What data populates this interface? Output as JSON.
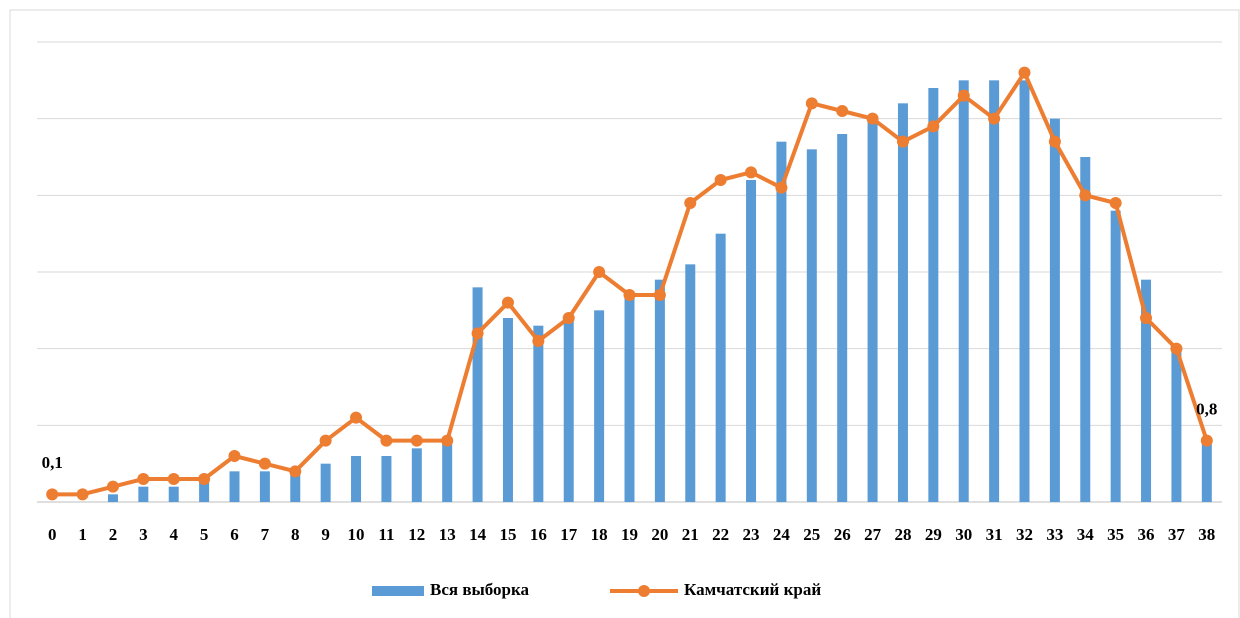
{
  "chart_data": {
    "type": "combo",
    "categories": [
      "0",
      "1",
      "2",
      "3",
      "4",
      "5",
      "6",
      "7",
      "8",
      "9",
      "10",
      "11",
      "12",
      "13",
      "14",
      "15",
      "16",
      "17",
      "18",
      "19",
      "20",
      "21",
      "22",
      "23",
      "24",
      "25",
      "26",
      "27",
      "28",
      "29",
      "30",
      "31",
      "32",
      "33",
      "34",
      "35",
      "36",
      "37",
      "38"
    ],
    "series": [
      {
        "name": "Вся выборка",
        "type": "bar",
        "color": "#5b9bd5",
        "values": [
          0,
          0,
          0.1,
          0.2,
          0.2,
          0.3,
          0.4,
          0.4,
          0.4,
          0.5,
          0.6,
          0.6,
          0.7,
          0.8,
          2.8,
          2.4,
          2.3,
          2.4,
          2.5,
          2.7,
          2.9,
          3.1,
          3.5,
          4.2,
          4.7,
          4.6,
          4.8,
          5.0,
          5.2,
          5.4,
          5.5,
          5.5,
          5.5,
          5.0,
          4.5,
          3.8,
          2.9,
          2.0,
          0.8
        ]
      },
      {
        "name": "Камчатский край",
        "type": "line",
        "color": "#ed7d31",
        "values": [
          0.1,
          0.1,
          0.2,
          0.3,
          0.3,
          0.3,
          0.6,
          0.5,
          0.4,
          0.8,
          1.1,
          0.8,
          0.8,
          0.8,
          2.2,
          2.6,
          2.1,
          2.4,
          3.0,
          2.7,
          2.7,
          3.9,
          4.2,
          4.3,
          4.1,
          5.2,
          5.1,
          5.0,
          4.7,
          4.9,
          5.3,
          5.0,
          5.6,
          4.7,
          4.0,
          3.9,
          2.4,
          2.0,
          0.8
        ],
        "value_labels": [
          "0,1",
          null,
          null,
          null,
          null,
          null,
          null,
          null,
          null,
          null,
          null,
          null,
          null,
          null,
          null,
          null,
          null,
          null,
          null,
          null,
          null,
          null,
          null,
          null,
          null,
          null,
          null,
          null,
          null,
          null,
          null,
          null,
          null,
          null,
          null,
          null,
          null,
          null,
          "0,8"
        ]
      }
    ],
    "ylim": [
      0,
      6
    ],
    "yticks": [
      0,
      1,
      2,
      3,
      4,
      5,
      6
    ],
    "grid": true,
    "legend": "bottom"
  }
}
